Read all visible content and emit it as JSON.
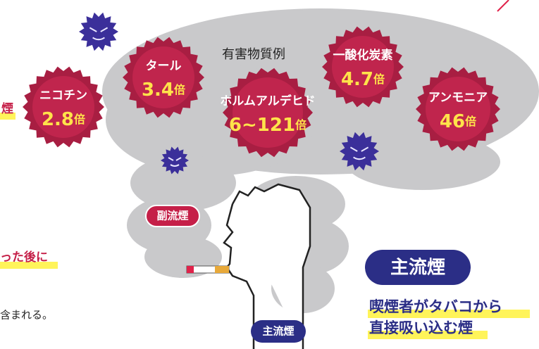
{
  "heading": "有害物質例",
  "substances": [
    {
      "name": "ニコチン",
      "value": "2.8",
      "unit": "倍"
    },
    {
      "name": "タール",
      "value": "3.4",
      "unit": "倍"
    },
    {
      "name": "ホルムアルデヒド",
      "value": "6~121",
      "unit": "倍"
    },
    {
      "name": "一酸化炭素",
      "value": "4.7",
      "unit": "倍"
    },
    {
      "name": "アンモニア",
      "value": "46",
      "unit": "倍"
    }
  ],
  "side_smoke_label": "副流煙",
  "main_smoke_label": "主流煙",
  "main_smoke_badge": "主流煙",
  "main_smoke_description": [
    "喫煙者がタバコから",
    "直接吸い込む煙"
  ],
  "left_fragments": [
    "煙",
    "った後に",
    "含まれる。"
  ]
}
